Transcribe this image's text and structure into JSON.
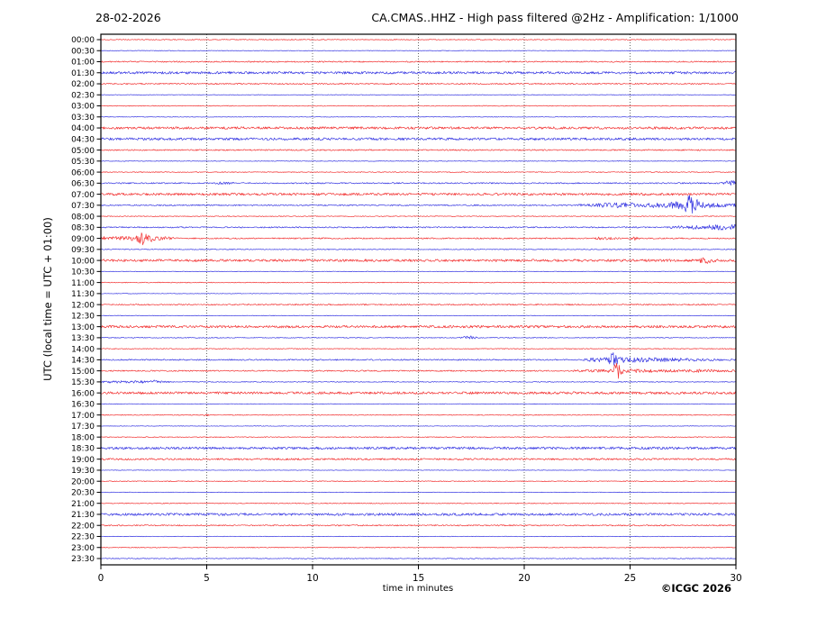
{
  "header": {
    "date": "28-02-2026",
    "title": "CA.CMAS..HHZ - High pass filtered @2Hz - Amplification: 1/1000"
  },
  "axes": {
    "ylabel": "UTC (local time = UTC + 01:00)",
    "xlabel": "time in minutes"
  },
  "footer": {
    "copyright": "©ICGC 2026"
  },
  "chart_data": {
    "type": "line",
    "subtype": "helicorder-day-plot",
    "title": "CA.CMAS..HHZ - High pass filtered @2Hz - Amplification: 1/1000",
    "xlabel": "time in minutes",
    "ylabel": "UTC (local time = UTC + 01:00)",
    "x_range": [
      0,
      30
    ],
    "x_ticks": [
      0,
      5,
      10,
      15,
      20,
      25,
      30
    ],
    "grid_minutes": [
      5,
      10,
      15,
      20,
      25
    ],
    "minutes_per_row": 30,
    "amplitude_units": "px",
    "legend": "red = traces starting on the hour, blue = traces starting on the half hour",
    "colors": {
      "red": "#f01010",
      "blue": "#1515dd",
      "grid": "#444444",
      "frame": "#000000",
      "text": "#000000"
    },
    "rows": [
      {
        "label": "00:00",
        "color": "red",
        "noise": 0.45,
        "events": []
      },
      {
        "label": "00:30",
        "color": "blue",
        "noise": 0.3,
        "events": []
      },
      {
        "label": "01:00",
        "color": "red",
        "noise": 0.7,
        "events": []
      },
      {
        "label": "01:30",
        "color": "blue",
        "noise": 1.35,
        "events": []
      },
      {
        "label": "02:00",
        "color": "red",
        "noise": 0.7,
        "events": []
      },
      {
        "label": "02:30",
        "color": "blue",
        "noise": 0.3,
        "events": []
      },
      {
        "label": "03:00",
        "color": "red",
        "noise": 0.45,
        "events": []
      },
      {
        "label": "03:30",
        "color": "blue",
        "noise": 0.3,
        "events": []
      },
      {
        "label": "04:00",
        "color": "red",
        "noise": 1.35,
        "events": []
      },
      {
        "label": "04:30",
        "color": "blue",
        "noise": 1.35,
        "events": []
      },
      {
        "label": "05:00",
        "color": "red",
        "noise": 0.7,
        "events": []
      },
      {
        "label": "05:30",
        "color": "blue",
        "noise": 0.35,
        "events": []
      },
      {
        "label": "06:00",
        "color": "red",
        "noise": 0.45,
        "events": []
      },
      {
        "label": "06:30",
        "color": "blue",
        "noise": 0.7,
        "events": [
          [
            [
              5.2,
              0
            ],
            [
              5.4,
              0.7
            ],
            [
              6.2,
              0.6
            ],
            [
              6.4,
              0
            ]
          ],
          [
            [
              29.2,
              0
            ],
            [
              29.45,
              1.2
            ],
            [
              29.7,
              2.8
            ],
            [
              30,
              2.2
            ]
          ]
        ]
      },
      {
        "label": "07:00",
        "color": "red",
        "noise": 1.35,
        "events": []
      },
      {
        "label": "07:30",
        "color": "blue",
        "noise": 0.7,
        "events": [
          [
            [
              22.4,
              0
            ],
            [
              22.7,
              0.8
            ],
            [
              23.3,
              0.7
            ],
            [
              23.6,
              1.8
            ],
            [
              24.2,
              2.2
            ],
            [
              24.9,
              2.4
            ],
            [
              25.4,
              1.2
            ],
            [
              25.9,
              2.0
            ],
            [
              26.5,
              2.2
            ],
            [
              27.1,
              3.0
            ],
            [
              27.55,
              5.0
            ],
            [
              27.8,
              13.0
            ],
            [
              28.1,
              7.0
            ],
            [
              28.35,
              3.0
            ],
            [
              28.8,
              2.2
            ],
            [
              29.4,
              1.4
            ],
            [
              30,
              1.1
            ]
          ]
        ]
      },
      {
        "label": "08:00",
        "color": "red",
        "noise": 0.45,
        "events": []
      },
      {
        "label": "08:30",
        "color": "blue",
        "noise": 0.7,
        "events": [
          [
            [
              26.6,
              0
            ],
            [
              27.1,
              0.9
            ],
            [
              27.9,
              1.2
            ],
            [
              28.6,
              1.8
            ],
            [
              29.1,
              2.6
            ],
            [
              29.6,
              2.4
            ],
            [
              30,
              2.6
            ]
          ]
        ]
      },
      {
        "label": "09:00",
        "color": "red",
        "noise": 0.7,
        "events": [
          [
            [
              0,
              0.6
            ],
            [
              0.15,
              1.8
            ],
            [
              0.3,
              0.7
            ],
            [
              0.55,
              1.3
            ],
            [
              0.75,
              1.8
            ],
            [
              1.0,
              1.6
            ],
            [
              1.3,
              2.2
            ],
            [
              1.55,
              2.0
            ],
            [
              1.75,
              3.2
            ],
            [
              1.96,
              8.0
            ],
            [
              2.15,
              4.5
            ],
            [
              2.35,
              3.2
            ],
            [
              2.6,
              2.2
            ],
            [
              2.9,
              1.4
            ],
            [
              3.3,
              0.8
            ],
            [
              3.7,
              0
            ]
          ],
          [
            [
              20.7,
              0
            ],
            [
              20.9,
              0.9
            ],
            [
              21.1,
              0
            ]
          ],
          [
            [
              23.2,
              0
            ],
            [
              23.5,
              0.9
            ],
            [
              24.2,
              0.7
            ],
            [
              24.5,
              0
            ]
          ],
          [
            [
              25.0,
              0
            ],
            [
              25.25,
              1.6
            ],
            [
              25.55,
              0
            ]
          ]
        ]
      },
      {
        "label": "09:30",
        "color": "blue",
        "noise": 0.45,
        "events": []
      },
      {
        "label": "10:00",
        "color": "red",
        "noise": 1.35,
        "events": [
          [
            [
              28.1,
              0
            ],
            [
              28.35,
              1.6
            ],
            [
              28.6,
              2.4
            ],
            [
              28.9,
              1.0
            ],
            [
              29.2,
              0
            ]
          ]
        ]
      },
      {
        "label": "10:30",
        "color": "blue",
        "noise": 0.3,
        "events": []
      },
      {
        "label": "11:00",
        "color": "red",
        "noise": 0.45,
        "events": []
      },
      {
        "label": "11:30",
        "color": "blue",
        "noise": 0.3,
        "events": []
      },
      {
        "label": "12:00",
        "color": "red",
        "noise": 0.7,
        "events": []
      },
      {
        "label": "12:30",
        "color": "blue",
        "noise": 0.3,
        "events": []
      },
      {
        "label": "13:00",
        "color": "red",
        "noise": 1.35,
        "events": []
      },
      {
        "label": "13:30",
        "color": "blue",
        "noise": 0.45,
        "events": [
          [
            [
              16.9,
              0
            ],
            [
              17.15,
              1.0
            ],
            [
              17.45,
              1.6
            ],
            [
              17.75,
              0.7
            ],
            [
              17.95,
              0
            ]
          ]
        ]
      },
      {
        "label": "14:00",
        "color": "red",
        "noise": 0.45,
        "events": []
      },
      {
        "label": "14:30",
        "color": "blue",
        "noise": 0.7,
        "events": [
          [
            [
              22.7,
              0
            ],
            [
              23.0,
              1.2
            ],
            [
              23.5,
              1.6
            ],
            [
              23.85,
              2.5
            ],
            [
              24.0,
              4.0
            ],
            [
              24.12,
              11.0
            ],
            [
              24.3,
              7.0
            ],
            [
              24.5,
              3.0
            ],
            [
              24.8,
              2.6
            ],
            [
              25.3,
              2.2
            ],
            [
              25.9,
              1.8
            ],
            [
              26.6,
              1.7
            ],
            [
              27.3,
              1.3
            ],
            [
              27.9,
              1.1
            ],
            [
              28.6,
              0.7
            ],
            [
              29.3,
              0.4
            ],
            [
              30,
              0.35
            ]
          ]
        ]
      },
      {
        "label": "15:00",
        "color": "red",
        "noise": 0.7,
        "events": [
          [
            [
              22.3,
              0.3
            ],
            [
              22.8,
              0.9
            ],
            [
              23.3,
              0.8
            ],
            [
              23.8,
              1.1
            ],
            [
              24.15,
              1.4
            ],
            [
              24.38,
              12.0
            ],
            [
              24.6,
              2.6
            ],
            [
              24.9,
              1.6
            ],
            [
              25.4,
              1.3
            ],
            [
              26.0,
              1.1
            ],
            [
              26.7,
              0.9
            ],
            [
              27.5,
              0.8
            ],
            [
              28.2,
              1.3
            ],
            [
              28.8,
              0.9
            ],
            [
              29.5,
              0.6
            ],
            [
              30,
              0.5
            ]
          ]
        ]
      },
      {
        "label": "15:30",
        "color": "blue",
        "noise": 0.45,
        "events": [
          [
            [
              0,
              0.7
            ],
            [
              1.5,
              0.9
            ],
            [
              2.3,
              1.1
            ],
            [
              2.5,
              1.7
            ],
            [
              2.75,
              0.9
            ],
            [
              3.1,
              0.4
            ],
            [
              3.5,
              0
            ]
          ]
        ]
      },
      {
        "label": "16:00",
        "color": "red",
        "noise": 1.35,
        "events": []
      },
      {
        "label": "16:30",
        "color": "blue",
        "noise": 0.3,
        "events": []
      },
      {
        "label": "17:00",
        "color": "red",
        "noise": 0.45,
        "events": [
          [
            [
              4.8,
              0
            ],
            [
              4.95,
              1.1
            ],
            [
              5.15,
              0
            ]
          ]
        ]
      },
      {
        "label": "17:30",
        "color": "blue",
        "noise": 0.3,
        "events": []
      },
      {
        "label": "18:00",
        "color": "red",
        "noise": 0.45,
        "events": []
      },
      {
        "label": "18:30",
        "color": "blue",
        "noise": 1.35,
        "events": []
      },
      {
        "label": "19:00",
        "color": "red",
        "noise": 1.0,
        "events": []
      },
      {
        "label": "19:30",
        "color": "blue",
        "noise": 0.3,
        "events": []
      },
      {
        "label": "20:00",
        "color": "red",
        "noise": 0.45,
        "events": []
      },
      {
        "label": "20:30",
        "color": "blue",
        "noise": 0.3,
        "events": []
      },
      {
        "label": "21:00",
        "color": "red",
        "noise": 0.45,
        "events": []
      },
      {
        "label": "21:30",
        "color": "blue",
        "noise": 1.35,
        "events": []
      },
      {
        "label": "22:00",
        "color": "red",
        "noise": 0.7,
        "events": []
      },
      {
        "label": "22:30",
        "color": "blue",
        "noise": 0.3,
        "events": []
      },
      {
        "label": "23:00",
        "color": "red",
        "noise": 0.45,
        "events": []
      },
      {
        "label": "23:30",
        "color": "blue",
        "noise": 0.45,
        "events": []
      }
    ]
  }
}
